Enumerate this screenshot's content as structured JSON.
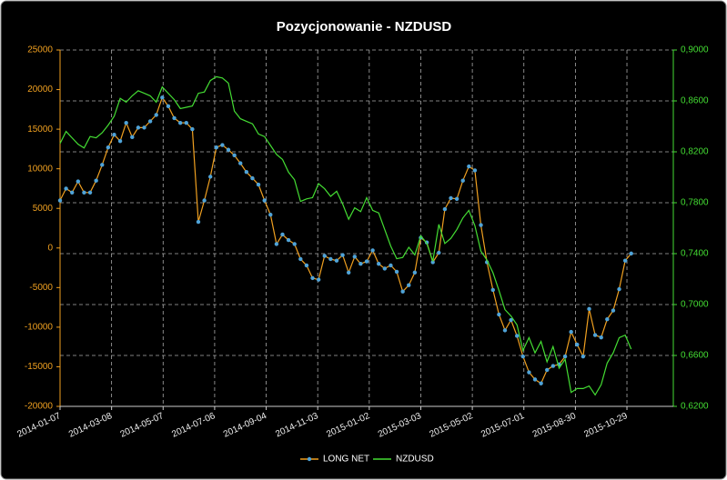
{
  "chart_data": {
    "type": "line",
    "title": "Pozycjonowanie - NZDUSD",
    "x": [
      "2014-01-07",
      "2014-01-14",
      "2014-01-21",
      "2014-01-28",
      "2014-02-04",
      "2014-02-11",
      "2014-02-18",
      "2014-02-25",
      "2014-03-04",
      "2014-03-11",
      "2014-03-18",
      "2014-03-25",
      "2014-04-01",
      "2014-04-08",
      "2014-04-15",
      "2014-04-22",
      "2014-04-29",
      "2014-05-06",
      "2014-05-13",
      "2014-05-20",
      "2014-05-27",
      "2014-06-03",
      "2014-06-10",
      "2014-06-17",
      "2014-06-24",
      "2014-07-01",
      "2014-07-08",
      "2014-07-15",
      "2014-07-22",
      "2014-07-29",
      "2014-08-05",
      "2014-08-12",
      "2014-08-19",
      "2014-08-26",
      "2014-09-02",
      "2014-09-09",
      "2014-09-16",
      "2014-09-23",
      "2014-09-30",
      "2014-10-07",
      "2014-10-14",
      "2014-10-21",
      "2014-10-28",
      "2014-11-04",
      "2014-11-11",
      "2014-11-18",
      "2014-11-25",
      "2014-12-02",
      "2014-12-09",
      "2014-12-16",
      "2014-12-23",
      "2014-12-30",
      "2015-01-06",
      "2015-01-13",
      "2015-01-20",
      "2015-01-27",
      "2015-02-03",
      "2015-02-10",
      "2015-02-17",
      "2015-02-24",
      "2015-03-03",
      "2015-03-10",
      "2015-03-17",
      "2015-03-24",
      "2015-03-31",
      "2015-04-07",
      "2015-04-14",
      "2015-04-21",
      "2015-04-28",
      "2015-05-05",
      "2015-05-12",
      "2015-05-19",
      "2015-05-26",
      "2015-06-02",
      "2015-06-09",
      "2015-06-16",
      "2015-06-23",
      "2015-06-30",
      "2015-07-07",
      "2015-07-14",
      "2015-07-21",
      "2015-07-28",
      "2015-08-04",
      "2015-08-11",
      "2015-08-18",
      "2015-08-25",
      "2015-09-01",
      "2015-09-08",
      "2015-09-15",
      "2015-09-22",
      "2015-09-29",
      "2015-10-06",
      "2015-10-13",
      "2015-10-20",
      "2015-10-27",
      "2015-11-03"
    ],
    "xlim": [
      "2014-01-07",
      "2015-12-22"
    ],
    "xticks": [
      "2014-01-07",
      "2014-03-08",
      "2014-05-07",
      "2014-07-06",
      "2014-09-04",
      "2014-11-03",
      "2015-01-02",
      "2015-03-03",
      "2015-05-02",
      "2015-07-01",
      "2015-08-30",
      "2015-10-29"
    ],
    "ylim": [
      -20000,
      25000
    ],
    "yticks": [
      25000,
      20000,
      15000,
      10000,
      5000,
      0,
      -5000,
      -10000,
      -15000,
      -20000
    ],
    "y2lim": [
      0.62,
      0.9
    ],
    "y2ticks": [
      {
        "value": 0.9,
        "label": "0,9000"
      },
      {
        "value": 0.86,
        "label": "0,8600"
      },
      {
        "value": 0.82,
        "label": "0,8200"
      },
      {
        "value": 0.78,
        "label": "0,7800"
      },
      {
        "value": 0.74,
        "label": "0,7400"
      },
      {
        "value": 0.7,
        "label": "0,7000"
      },
      {
        "value": 0.66,
        "label": "0,6600"
      },
      {
        "value": 0.62,
        "label": "0,6200"
      }
    ],
    "grid": true,
    "legend": "bottom",
    "series": [
      {
        "name": "LONG NET",
        "color": "#f0a020",
        "marker_color": "#4fa3d8",
        "values": [
          6000,
          7500,
          7000,
          8400,
          7000,
          7000,
          8500,
          10500,
          12700,
          14300,
          13500,
          15800,
          14000,
          15200,
          15200,
          16000,
          16800,
          19000,
          17900,
          16400,
          15800,
          15800,
          15000,
          3300,
          6000,
          9000,
          12700,
          13000,
          12400,
          11700,
          10700,
          9600,
          8800,
          8000,
          6000,
          4200,
          500,
          1700,
          1000,
          500,
          -1400,
          -2200,
          -3800,
          -4000,
          -1000,
          -1400,
          -1600,
          -900,
          -3100,
          -1100,
          -2000,
          -1700,
          -300,
          -2000,
          -2600,
          -2200,
          -3000,
          -5500,
          -4700,
          -3100,
          1300,
          700,
          -1800,
          -600,
          4900,
          6300,
          6200,
          8500,
          10300,
          9800,
          2900,
          -1800,
          -5300,
          -8400,
          -10400,
          -9100,
          -11100,
          -13700,
          -15700,
          -16600,
          -17100,
          -15400,
          -14900,
          -14700,
          -13700,
          -10600,
          -12200,
          -13700,
          -7700,
          -11000,
          -11300,
          -9000,
          -7900,
          -5200,
          -1600,
          -700
        ]
      },
      {
        "name": "NZDUSD",
        "color": "#44dd33",
        "axis": "y2",
        "values": [
          0.8265,
          0.836,
          0.831,
          0.826,
          0.823,
          0.832,
          0.831,
          0.835,
          0.841,
          0.848,
          0.862,
          0.859,
          0.864,
          0.868,
          0.866,
          0.864,
          0.859,
          0.871,
          0.866,
          0.861,
          0.854,
          0.855,
          0.856,
          0.866,
          0.867,
          0.876,
          0.879,
          0.878,
          0.874,
          0.852,
          0.846,
          0.844,
          0.842,
          0.834,
          0.832,
          0.825,
          0.818,
          0.814,
          0.804,
          0.798,
          0.781,
          0.783,
          0.784,
          0.795,
          0.791,
          0.785,
          0.789,
          0.779,
          0.767,
          0.776,
          0.773,
          0.784,
          0.774,
          0.772,
          0.759,
          0.746,
          0.736,
          0.737,
          0.745,
          0.739,
          0.754,
          0.748,
          0.734,
          0.763,
          0.748,
          0.752,
          0.759,
          0.768,
          0.774,
          0.762,
          0.742,
          0.735,
          0.725,
          0.711,
          0.696,
          0.691,
          0.684,
          0.664,
          0.674,
          0.662,
          0.671,
          0.655,
          0.667,
          0.65,
          0.657,
          0.631,
          0.634,
          0.634,
          0.636,
          0.629,
          0.637,
          0.654,
          0.662,
          0.674,
          0.676,
          0.665
        ]
      }
    ]
  }
}
